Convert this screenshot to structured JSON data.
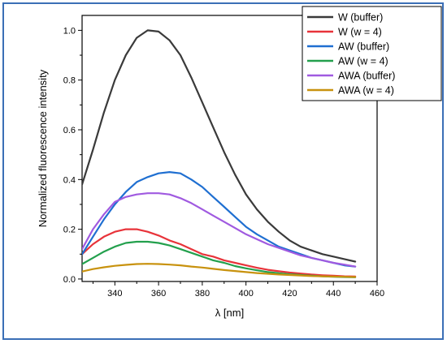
{
  "chart_data": {
    "type": "line",
    "title": "",
    "xlabel": "λ [nm]",
    "ylabel": "Normalized fluorescence intensity",
    "xlim": [
      325,
      460
    ],
    "ylim": [
      -0.01,
      1.06
    ],
    "xticks": [
      340,
      360,
      380,
      400,
      420,
      440,
      460
    ],
    "yticks": [
      0.0,
      0.2,
      0.4,
      0.6,
      0.8,
      1.0
    ],
    "grid": false,
    "legend_position": "top-right",
    "x": [
      325,
      330,
      335,
      340,
      345,
      350,
      355,
      360,
      365,
      370,
      375,
      380,
      385,
      390,
      395,
      400,
      405,
      410,
      415,
      420,
      425,
      430,
      435,
      440,
      445,
      450
    ],
    "series": [
      {
        "name": "W (buffer)",
        "color": "#3a3a3a",
        "values": [
          0.38,
          0.52,
          0.67,
          0.8,
          0.9,
          0.97,
          1.0,
          0.995,
          0.96,
          0.9,
          0.81,
          0.71,
          0.61,
          0.51,
          0.42,
          0.34,
          0.28,
          0.23,
          0.19,
          0.155,
          0.13,
          0.115,
          0.1,
          0.09,
          0.08,
          0.07
        ]
      },
      {
        "name": "W (w = 4)",
        "color": "#e8333a",
        "values": [
          0.1,
          0.14,
          0.17,
          0.19,
          0.2,
          0.2,
          0.19,
          0.175,
          0.155,
          0.14,
          0.12,
          0.1,
          0.09,
          0.075,
          0.065,
          0.055,
          0.045,
          0.037,
          0.031,
          0.026,
          0.022,
          0.018,
          0.015,
          0.013,
          0.011,
          0.01
        ]
      },
      {
        "name": "AW (buffer)",
        "color": "#1f6fd1",
        "values": [
          0.1,
          0.17,
          0.24,
          0.3,
          0.35,
          0.39,
          0.41,
          0.425,
          0.43,
          0.425,
          0.4,
          0.37,
          0.33,
          0.29,
          0.25,
          0.21,
          0.18,
          0.155,
          0.13,
          0.115,
          0.1,
          0.085,
          0.075,
          0.065,
          0.055,
          0.05
        ]
      },
      {
        "name": "AW (w = 4)",
        "color": "#23a04d",
        "values": [
          0.06,
          0.085,
          0.11,
          0.13,
          0.145,
          0.15,
          0.15,
          0.145,
          0.135,
          0.12,
          0.105,
          0.09,
          0.075,
          0.065,
          0.052,
          0.043,
          0.035,
          0.028,
          0.023,
          0.019,
          0.016,
          0.013,
          0.011,
          0.009,
          0.008,
          0.007
        ]
      },
      {
        "name": "AWA (buffer)",
        "color": "#a05ae0",
        "values": [
          0.12,
          0.2,
          0.26,
          0.31,
          0.33,
          0.34,
          0.345,
          0.345,
          0.34,
          0.325,
          0.305,
          0.28,
          0.255,
          0.23,
          0.205,
          0.18,
          0.16,
          0.14,
          0.125,
          0.11,
          0.095,
          0.085,
          0.075,
          0.065,
          0.058,
          0.05
        ]
      },
      {
        "name": "AWA (w = 4)",
        "color": "#c8920e",
        "values": [
          0.03,
          0.04,
          0.047,
          0.053,
          0.057,
          0.06,
          0.061,
          0.06,
          0.058,
          0.055,
          0.05,
          0.046,
          0.041,
          0.036,
          0.032,
          0.028,
          0.024,
          0.021,
          0.018,
          0.016,
          0.014,
          0.012,
          0.011,
          0.01,
          0.009,
          0.008
        ]
      }
    ]
  }
}
